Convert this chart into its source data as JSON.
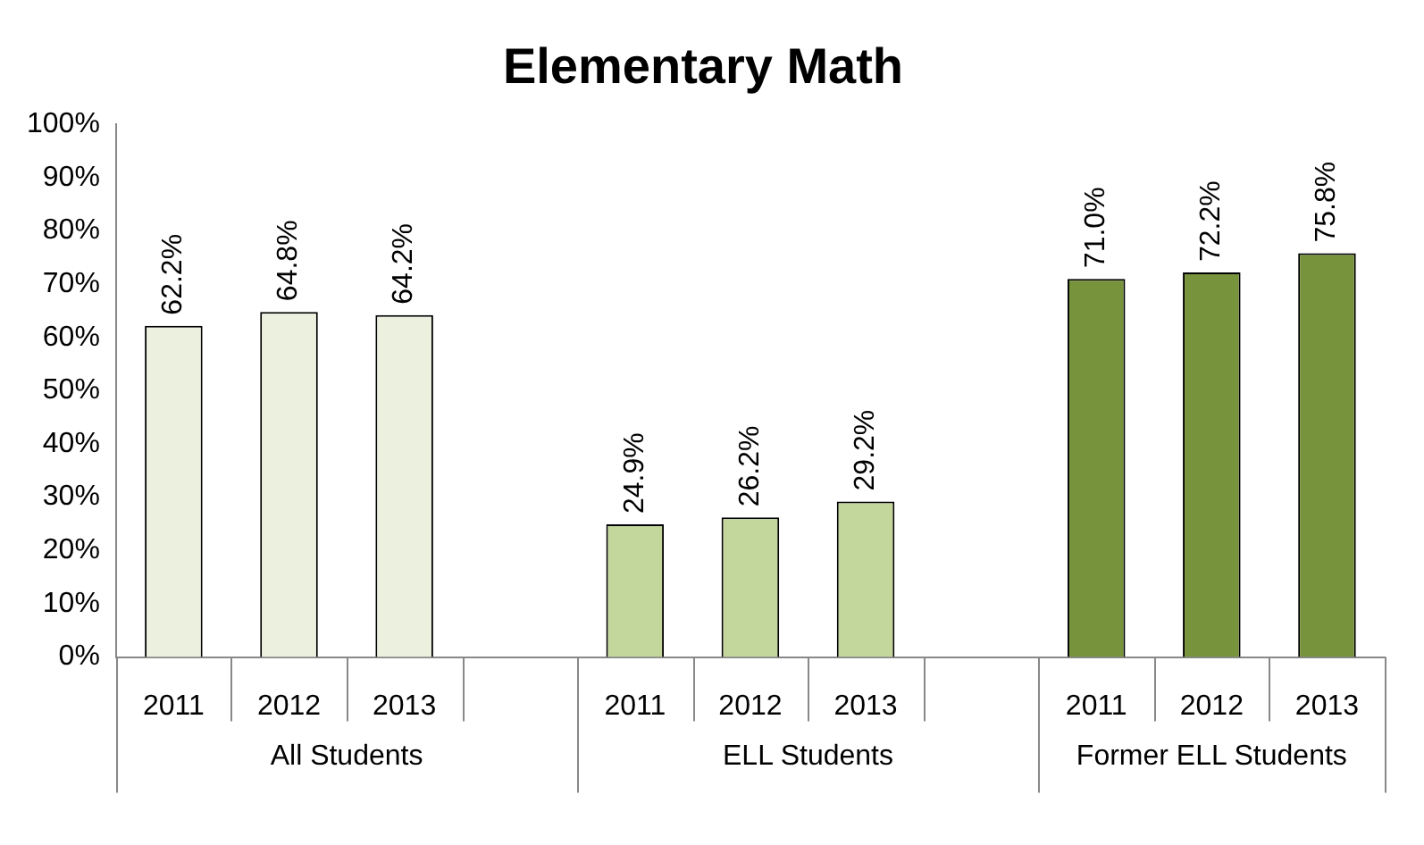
{
  "chart_data": {
    "type": "bar",
    "title": "Elementary Math",
    "categories": [
      "2011",
      "2012",
      "2013",
      null,
      "2011",
      "2012",
      "2013",
      null,
      "2011",
      "2012",
      "2013"
    ],
    "values": [
      62.2,
      64.8,
      64.2,
      null,
      24.9,
      26.2,
      29.2,
      null,
      71.0,
      72.2,
      75.8
    ],
    "value_labels": [
      "62.2%",
      "64.8%",
      "64.2%",
      null,
      "24.9%",
      "26.2%",
      "29.2%",
      null,
      "71.0%",
      "72.2%",
      "75.8%"
    ],
    "colors": [
      "#ebf1de",
      "#ebf1de",
      "#ebf1de",
      null,
      "#c3d69b",
      "#c3d69b",
      "#c3d69b",
      null,
      "#77933c",
      "#77933c",
      "#77933c"
    ],
    "annotations": [
      "All Students",
      "ELL Students",
      "Former ELL Students"
    ],
    "ylim": [
      0,
      100
    ],
    "yticks": [
      {
        "value": 0,
        "label": "0%"
      },
      {
        "value": 10,
        "label": "10%"
      },
      {
        "value": 20,
        "label": "20%"
      },
      {
        "value": 30,
        "label": "30%"
      },
      {
        "value": 40,
        "label": "40%"
      },
      {
        "value": 50,
        "label": "50%"
      },
      {
        "value": 60,
        "label": "60%"
      },
      {
        "value": 70,
        "label": "70%"
      },
      {
        "value": 80,
        "label": "80%"
      },
      {
        "value": 90,
        "label": "90%"
      },
      {
        "value": 100,
        "label": "100%"
      }
    ],
    "grid": false,
    "legend": false
  }
}
